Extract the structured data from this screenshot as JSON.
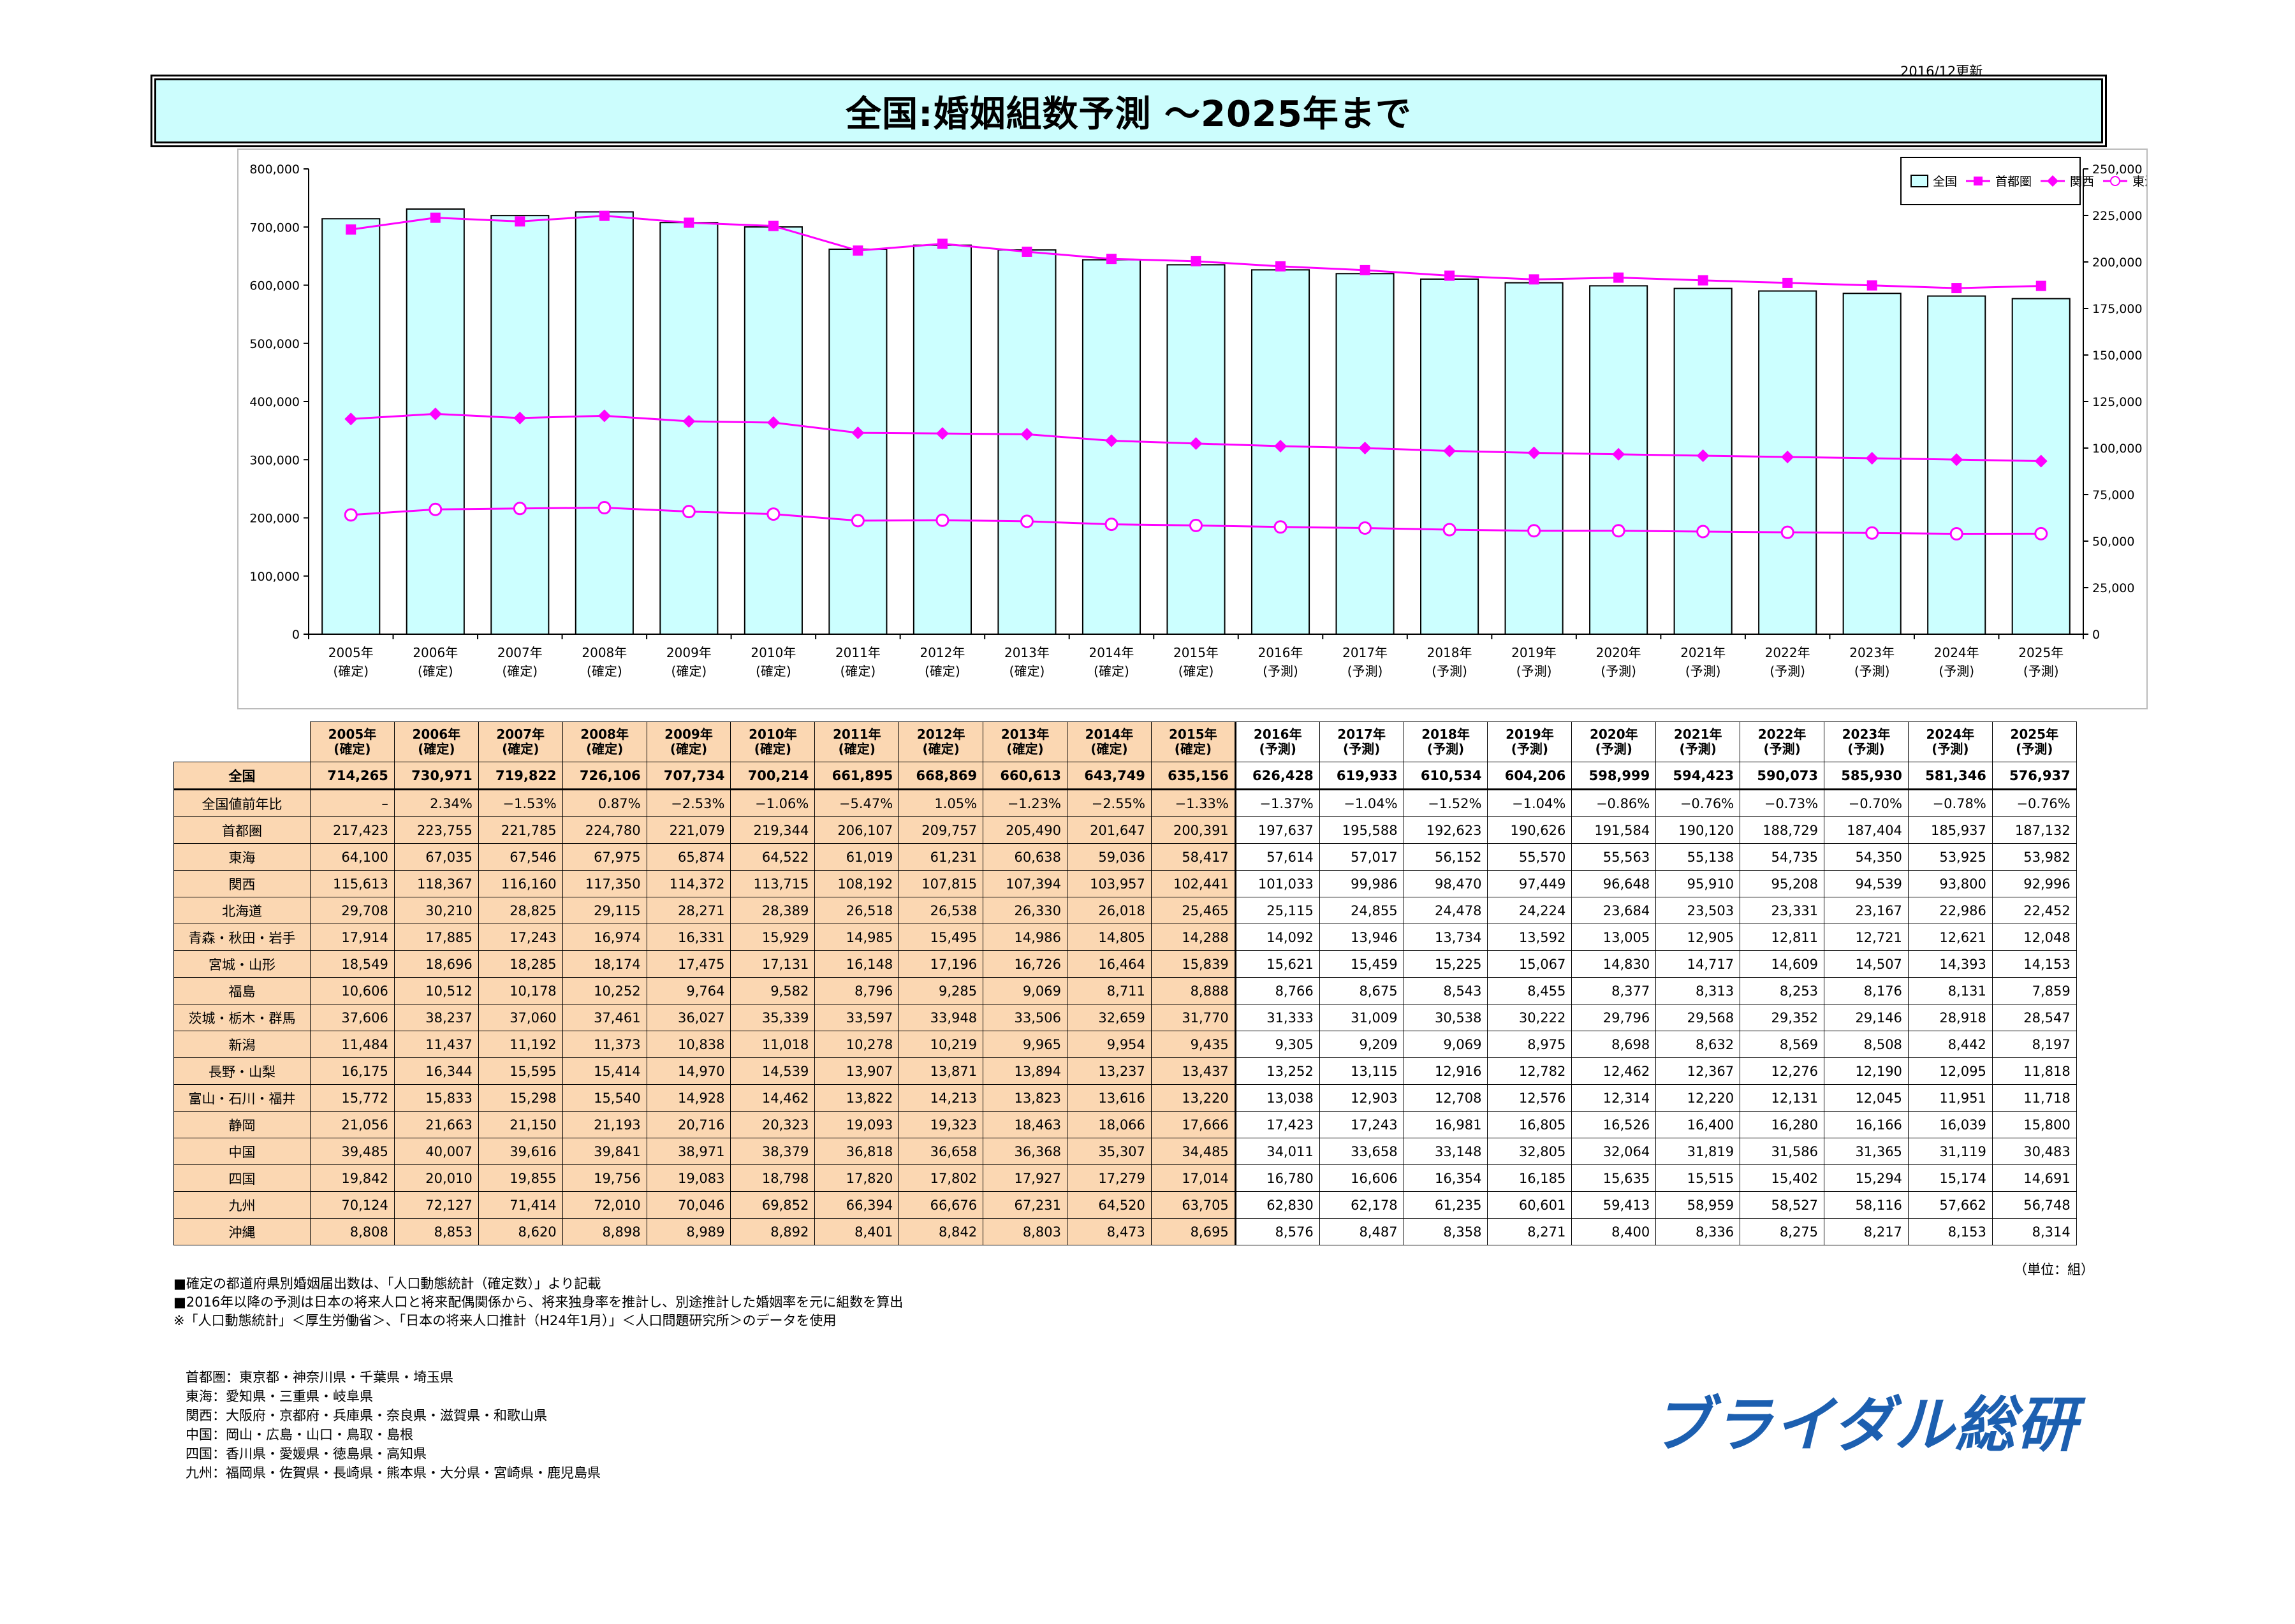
{
  "update_note": "2016/12更新",
  "title": "全国:婚姻組数予測 ～2025年まで",
  "chart_data": {
    "type": "bar",
    "categories": [
      "2005年\n(確定)",
      "2006年\n(確定)",
      "2007年\n(確定)",
      "2008年\n(確定)",
      "2009年\n(確定)",
      "2010年\n(確定)",
      "2011年\n(確定)",
      "2012年\n(確定)",
      "2013年\n(確定)",
      "2014年\n(確定)",
      "2015年\n(確定)",
      "2016年\n(予測)",
      "2017年\n(予測)",
      "2018年\n(予測)",
      "2019年\n(予測)",
      "2020年\n(予測)",
      "2021年\n(予測)",
      "2022年\n(予測)",
      "2023年\n(予測)",
      "2024年\n(予測)",
      "2025年\n(予測)"
    ],
    "series": [
      {
        "name": "全国",
        "type": "bar",
        "axis": "left",
        "color": "#ccffff",
        "values": [
          714265,
          730971,
          719822,
          726106,
          707734,
          700214,
          661895,
          668869,
          660613,
          643749,
          635156,
          626428,
          619933,
          610534,
          604206,
          598999,
          594423,
          590073,
          585930,
          581346,
          576937
        ]
      },
      {
        "name": "首都圏",
        "type": "line",
        "axis": "right",
        "marker": "square",
        "color": "#ff00ff",
        "values": [
          217423,
          223755,
          221785,
          224780,
          221079,
          219344,
          206107,
          209757,
          205490,
          201647,
          200391,
          197637,
          195588,
          192623,
          190626,
          191584,
          190120,
          188729,
          187404,
          185937,
          187132
        ]
      },
      {
        "name": "関西",
        "type": "line",
        "axis": "right",
        "marker": "diamond",
        "color": "#ff00ff",
        "values": [
          115613,
          118367,
          116160,
          117350,
          114372,
          113715,
          108192,
          107815,
          107394,
          103957,
          102441,
          101033,
          99986,
          98470,
          97449,
          96648,
          95910,
          95208,
          94539,
          93800,
          92996
        ]
      },
      {
        "name": "東海",
        "type": "line",
        "axis": "right",
        "marker": "circle",
        "color": "#ff00ff",
        "values": [
          64100,
          67035,
          67546,
          67975,
          65874,
          64522,
          61019,
          61231,
          60638,
          59036,
          58417,
          57614,
          57017,
          56152,
          55570,
          55563,
          55138,
          54735,
          54350,
          53925,
          53982
        ]
      }
    ],
    "left_ticks": [
      "0",
      "100,000",
      "200,000",
      "300,000",
      "400,000",
      "500,000",
      "600,000",
      "700,000",
      "800,000"
    ],
    "right_ticks": [
      "0",
      "25,000",
      "50,000",
      "75,000",
      "100,000",
      "125,000",
      "150,000",
      "175,000",
      "200,000",
      "225,000",
      "250,000"
    ],
    "ylim_left": [
      0,
      800000
    ],
    "ylim_right": [
      0,
      250000
    ],
    "legend_position": "top-right",
    "grid": false
  },
  "table": {
    "headers": [
      [
        "2005年",
        "(確定)"
      ],
      [
        "2006年",
        "(確定)"
      ],
      [
        "2007年",
        "(確定)"
      ],
      [
        "2008年",
        "(確定)"
      ],
      [
        "2009年",
        "(確定)"
      ],
      [
        "2010年",
        "(確定)"
      ],
      [
        "2011年",
        "(確定)"
      ],
      [
        "2012年",
        "(確定)"
      ],
      [
        "2013年",
        "(確定)"
      ],
      [
        "2014年",
        "(確定)"
      ],
      [
        "2015年",
        "(確定)"
      ],
      [
        "2016年",
        "(予測)"
      ],
      [
        "2017年",
        "(予測)"
      ],
      [
        "2018年",
        "(予測)"
      ],
      [
        "2019年",
        "(予測)"
      ],
      [
        "2020年",
        "(予測)"
      ],
      [
        "2021年",
        "(予測)"
      ],
      [
        "2022年",
        "(予測)"
      ],
      [
        "2023年",
        "(予測)"
      ],
      [
        "2024年",
        "(予測)"
      ],
      [
        "2025年",
        "(予測)"
      ]
    ],
    "rows": [
      {
        "label": "全国",
        "values": [
          "714,265",
          "730,971",
          "719,822",
          "726,106",
          "707,734",
          "700,214",
          "661,895",
          "668,869",
          "660,613",
          "643,749",
          "635,156",
          "626,428",
          "619,933",
          "610,534",
          "604,206",
          "598,999",
          "594,423",
          "590,073",
          "585,930",
          "581,346",
          "576,937"
        ]
      },
      {
        "label": "全国値前年比",
        "values": [
          "–",
          "2.34%",
          "−1.53%",
          "0.87%",
          "−2.53%",
          "−1.06%",
          "−5.47%",
          "1.05%",
          "−1.23%",
          "−2.55%",
          "−1.33%",
          "−1.37%",
          "−1.04%",
          "−1.52%",
          "−1.04%",
          "−0.86%",
          "−0.76%",
          "−0.73%",
          "−0.70%",
          "−0.78%",
          "−0.76%"
        ]
      },
      {
        "label": "首都圏",
        "values": [
          "217,423",
          "223,755",
          "221,785",
          "224,780",
          "221,079",
          "219,344",
          "206,107",
          "209,757",
          "205,490",
          "201,647",
          "200,391",
          "197,637",
          "195,588",
          "192,623",
          "190,626",
          "191,584",
          "190,120",
          "188,729",
          "187,404",
          "185,937",
          "187,132"
        ]
      },
      {
        "label": "東海",
        "values": [
          "64,100",
          "67,035",
          "67,546",
          "67,975",
          "65,874",
          "64,522",
          "61,019",
          "61,231",
          "60,638",
          "59,036",
          "58,417",
          "57,614",
          "57,017",
          "56,152",
          "55,570",
          "55,563",
          "55,138",
          "54,735",
          "54,350",
          "53,925",
          "53,982"
        ]
      },
      {
        "label": "関西",
        "values": [
          "115,613",
          "118,367",
          "116,160",
          "117,350",
          "114,372",
          "113,715",
          "108,192",
          "107,815",
          "107,394",
          "103,957",
          "102,441",
          "101,033",
          "99,986",
          "98,470",
          "97,449",
          "96,648",
          "95,910",
          "95,208",
          "94,539",
          "93,800",
          "92,996"
        ]
      },
      {
        "label": "北海道",
        "values": [
          "29,708",
          "30,210",
          "28,825",
          "29,115",
          "28,271",
          "28,389",
          "26,518",
          "26,538",
          "26,330",
          "26,018",
          "25,465",
          "25,115",
          "24,855",
          "24,478",
          "24,224",
          "23,684",
          "23,503",
          "23,331",
          "23,167",
          "22,986",
          "22,452"
        ]
      },
      {
        "label": "青森・秋田・岩手",
        "values": [
          "17,914",
          "17,885",
          "17,243",
          "16,974",
          "16,331",
          "15,929",
          "14,985",
          "15,495",
          "14,986",
          "14,805",
          "14,288",
          "14,092",
          "13,946",
          "13,734",
          "13,592",
          "13,005",
          "12,905",
          "12,811",
          "12,721",
          "12,621",
          "12,048"
        ]
      },
      {
        "label": "宮城・山形",
        "values": [
          "18,549",
          "18,696",
          "18,285",
          "18,174",
          "17,475",
          "17,131",
          "16,148",
          "17,196",
          "16,726",
          "16,464",
          "15,839",
          "15,621",
          "15,459",
          "15,225",
          "15,067",
          "14,830",
          "14,717",
          "14,609",
          "14,507",
          "14,393",
          "14,153"
        ]
      },
      {
        "label": "福島",
        "values": [
          "10,606",
          "10,512",
          "10,178",
          "10,252",
          "9,764",
          "9,582",
          "8,796",
          "9,285",
          "9,069",
          "8,711",
          "8,888",
          "8,766",
          "8,675",
          "8,543",
          "8,455",
          "8,377",
          "8,313",
          "8,253",
          "8,176",
          "8,131",
          "7,859"
        ]
      },
      {
        "label": "茨城・栃木・群馬",
        "values": [
          "37,606",
          "38,237",
          "37,060",
          "37,461",
          "36,027",
          "35,339",
          "33,597",
          "33,948",
          "33,506",
          "32,659",
          "31,770",
          "31,333",
          "31,009",
          "30,538",
          "30,222",
          "29,796",
          "29,568",
          "29,352",
          "29,146",
          "28,918",
          "28,547"
        ]
      },
      {
        "label": "新潟",
        "values": [
          "11,484",
          "11,437",
          "11,192",
          "11,373",
          "10,838",
          "11,018",
          "10,278",
          "10,219",
          "9,965",
          "9,954",
          "9,435",
          "9,305",
          "9,209",
          "9,069",
          "8,975",
          "8,698",
          "8,632",
          "8,569",
          "8,508",
          "8,442",
          "8,197"
        ]
      },
      {
        "label": "長野・山梨",
        "values": [
          "16,175",
          "16,344",
          "15,595",
          "15,414",
          "14,970",
          "14,539",
          "13,907",
          "13,871",
          "13,894",
          "13,237",
          "13,437",
          "13,252",
          "13,115",
          "12,916",
          "12,782",
          "12,462",
          "12,367",
          "12,276",
          "12,190",
          "12,095",
          "11,818"
        ]
      },
      {
        "label": "富山・石川・福井",
        "values": [
          "15,772",
          "15,833",
          "15,298",
          "15,540",
          "14,928",
          "14,462",
          "13,822",
          "14,213",
          "13,823",
          "13,616",
          "13,220",
          "13,038",
          "12,903",
          "12,708",
          "12,576",
          "12,314",
          "12,220",
          "12,131",
          "12,045",
          "11,951",
          "11,718"
        ]
      },
      {
        "label": "静岡",
        "values": [
          "21,056",
          "21,663",
          "21,150",
          "21,193",
          "20,716",
          "20,323",
          "19,093",
          "19,323",
          "18,463",
          "18,066",
          "17,666",
          "17,423",
          "17,243",
          "16,981",
          "16,805",
          "16,526",
          "16,400",
          "16,280",
          "16,166",
          "16,039",
          "15,800"
        ]
      },
      {
        "label": "中国",
        "values": [
          "39,485",
          "40,007",
          "39,616",
          "39,841",
          "38,971",
          "38,379",
          "36,818",
          "36,658",
          "36,368",
          "35,307",
          "34,485",
          "34,011",
          "33,658",
          "33,148",
          "32,805",
          "32,064",
          "31,819",
          "31,586",
          "31,365",
          "31,119",
          "30,483"
        ]
      },
      {
        "label": "四国",
        "values": [
          "19,842",
          "20,010",
          "19,855",
          "19,756",
          "19,083",
          "18,798",
          "17,820",
          "17,802",
          "17,927",
          "17,279",
          "17,014",
          "16,780",
          "16,606",
          "16,354",
          "16,185",
          "15,635",
          "15,515",
          "15,402",
          "15,294",
          "15,174",
          "14,691"
        ]
      },
      {
        "label": "九州",
        "values": [
          "70,124",
          "72,127",
          "71,414",
          "72,010",
          "70,046",
          "69,852",
          "66,394",
          "66,676",
          "67,231",
          "64,520",
          "63,705",
          "62,830",
          "62,178",
          "61,235",
          "60,601",
          "59,413",
          "58,959",
          "58,527",
          "58,116",
          "57,662",
          "56,748"
        ]
      },
      {
        "label": "沖縄",
        "values": [
          "8,808",
          "8,853",
          "8,620",
          "8,898",
          "8,989",
          "8,892",
          "8,401",
          "8,842",
          "8,803",
          "8,473",
          "8,695",
          "8,576",
          "8,487",
          "8,358",
          "8,271",
          "8,400",
          "8,336",
          "8,275",
          "8,217",
          "8,153",
          "8,314"
        ]
      }
    ]
  },
  "unit_note": "（単位：組）",
  "notes": [
    "■確定の都道府県別婚姻届出数は、「人口動態統計（確定数）」より記載",
    "■2016年以降の予測は日本の将来人口と将来配偶関係から、将来独身率を推計し、別途推計した婚姻率を元に組数を算出",
    "※「人口動態統計」＜厚生労働省＞、「日本の将来人口推計（H24年1月）」＜人口問題研究所＞のデータを使用"
  ],
  "regions": [
    "首都圏：東京都・神奈川県・千葉県・埼玉県",
    "東海：愛知県・三重県・岐阜県",
    "関西：大阪府・京都府・兵庫県・奈良県・滋賀県・和歌山県",
    "中国：岡山・広島・山口・鳥取・島根",
    "四国：香川県・愛媛県・徳島県・高知県",
    "九州：福岡県・佐賀県・長崎県・熊本県・大分県・宮崎県・鹿児島県"
  ],
  "logo_text": "ブライダル総研"
}
